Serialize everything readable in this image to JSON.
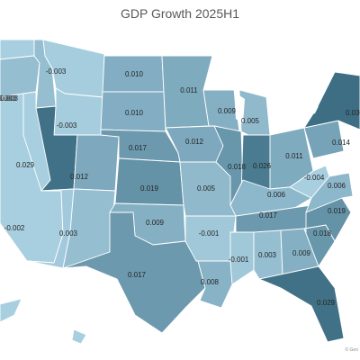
{
  "title": "GDP Growth 2025H1",
  "credit": "© Geo",
  "palette": {
    "low": "#a8cfe0",
    "mid": "#7aa6bb",
    "high": "#3d6e83",
    "lake": "#ffffff"
  },
  "states": [
    {
      "code": "WA",
      "value": null
    },
    {
      "code": "OR",
      "value": 0.003
    },
    {
      "code": "CA",
      "value": null
    },
    {
      "code": "ID",
      "value": 0.003
    },
    {
      "code": "NV",
      "value": null
    },
    {
      "code": "MT",
      "value": -0.003
    },
    {
      "code": "WY",
      "value": -0.003
    },
    {
      "code": "UT",
      "value": 0.029
    },
    {
      "code": "AZ",
      "value": -0.002
    },
    {
      "code": "CO",
      "value": 0.012
    },
    {
      "code": "NM",
      "value": 0.003
    },
    {
      "code": "ND",
      "value": 0.01
    },
    {
      "code": "SD",
      "value": 0.01
    },
    {
      "code": "NE",
      "value": 0.017
    },
    {
      "code": "KS",
      "value": 0.019
    },
    {
      "code": "OK",
      "value": 0.009
    },
    {
      "code": "TX",
      "value": 0.017
    },
    {
      "code": "MN",
      "value": 0.011
    },
    {
      "code": "IA",
      "value": 0.012
    },
    {
      "code": "MO",
      "value": 0.005
    },
    {
      "code": "AR",
      "value": -0.001
    },
    {
      "code": "LA",
      "value": 0.008
    },
    {
      "code": "WI",
      "value": 0.009
    },
    {
      "code": "IL",
      "value": 0.018
    },
    {
      "code": "MI",
      "value": 0.005
    },
    {
      "code": "IN",
      "value": 0.026
    },
    {
      "code": "OH",
      "value": 0.011
    },
    {
      "code": "KY",
      "value": 0.006
    },
    {
      "code": "TN",
      "value": 0.017
    },
    {
      "code": "MS",
      "value": -0.001
    },
    {
      "code": "AL",
      "value": 0.003
    },
    {
      "code": "GA",
      "value": 0.009
    },
    {
      "code": "FL",
      "value": 0.029
    },
    {
      "code": "SC",
      "value": 0.018
    },
    {
      "code": "NC",
      "value": 0.019
    },
    {
      "code": "VA",
      "value": 0.006
    },
    {
      "code": "WV",
      "value": -0.004
    },
    {
      "code": "PA",
      "value": 0.014
    },
    {
      "code": "NY",
      "value": 0.03
    },
    {
      "code": "AK",
      "value": null
    },
    {
      "code": "HI",
      "value": null
    }
  ]
}
